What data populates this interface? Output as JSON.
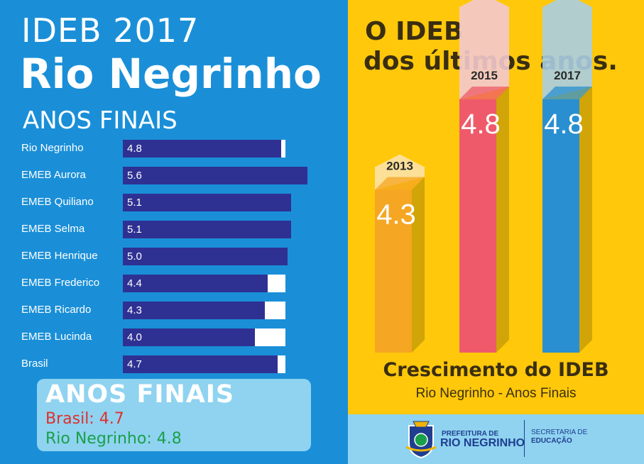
{
  "left": {
    "title_line1": "IDEB 2017",
    "title_line2": "Rio Negrinho",
    "subtitle": "ANOS FINAIS"
  },
  "summary_box": {
    "title": "ANOS FINAIS",
    "brasil": "Brasil: 4.7",
    "rio": "Rio Negrinho: 4.8"
  },
  "right": {
    "title_line1": "O IDEB",
    "title_line2": "dos últimos anos.",
    "caption1": "Crescimento do IDEB",
    "caption2": "Rio Negrinho - Anos Finais"
  },
  "footer": {
    "prefeitura_label": "PREFEITURA DE",
    "prefeitura_name": "RIO NEGRINHO",
    "secretaria_label": "SECRETARIA DE",
    "secretaria_name": "EDUCAÇÃO"
  },
  "colors": {
    "left_bg": "#1a8fd8",
    "bar_fill": "#2e3192",
    "right_bg": "#ffc80a",
    "col_2013": "#f5a623",
    "col_2015": "#ef5a6a",
    "col_2017": "#2a8fd0"
  },
  "chart_data": [
    {
      "type": "bar",
      "orientation": "horizontal",
      "categories": [
        "Rio Negrinho",
        "EMEB Aurora",
        "EMEB Quiliano",
        "EMEB Selma",
        "EMEB Henrique",
        "EMEB Frederico",
        "EMEB Ricardo",
        "EMEB Lucinda",
        "Brasil"
      ],
      "values": [
        4.8,
        5.6,
        5.1,
        5.1,
        5.0,
        4.4,
        4.3,
        4.0,
        4.7
      ],
      "value_labels": [
        "4.8",
        "5.6",
        "5.1",
        "5.1",
        "5.0",
        "4.4",
        "4.3",
        "4.0",
        "4.7"
      ],
      "xlim": [
        0,
        5.75
      ]
    },
    {
      "type": "bar",
      "categories": [
        "2013",
        "2015",
        "2017"
      ],
      "values": [
        4.3,
        4.8,
        4.8
      ],
      "value_labels": [
        "4.3",
        "4.8",
        "4.8"
      ]
    }
  ]
}
